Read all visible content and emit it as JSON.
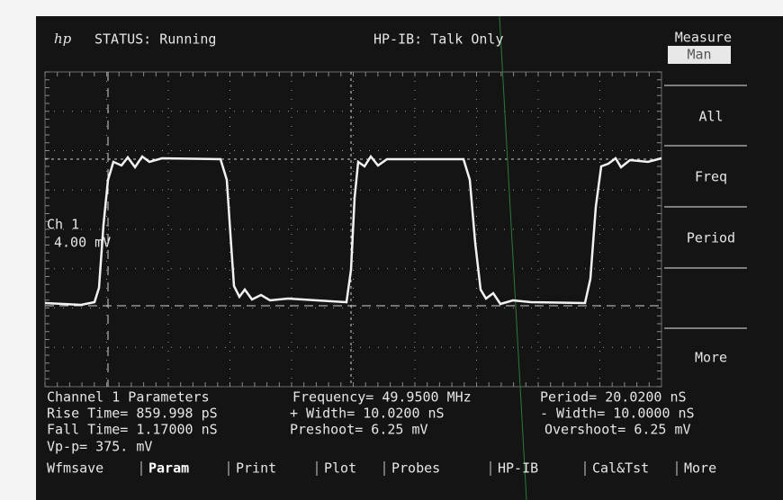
{
  "header": {
    "logo": "hp",
    "status": "STATUS: Running",
    "hpib": "HP-IB: Talk Only"
  },
  "menu": {
    "title": "Measure",
    "mode": "Man",
    "buttons": [
      "All",
      "Freq",
      "Period",
      "More"
    ]
  },
  "channel": {
    "name": "Ch 1",
    "scale": "4.00 mV"
  },
  "parameters": {
    "title": "Channel 1 Parameters",
    "rows": [
      [
        "Frequency= 49.9500 MHz",
        "Period= 20.0200 nS"
      ],
      [
        "Rise Time= 859.998 pS",
        "+ Width= 10.0200 nS",
        "- Width= 10.0000 nS"
      ],
      [
        "Fall Time= 1.17000 nS",
        "Preshoot= 6.25 mV",
        "Overshoot= 6.25 mV"
      ],
      [
        "Vp-p= 375. mV"
      ]
    ]
  },
  "softkeys": [
    "Wfmsave",
    "Param",
    "Print",
    "Plot",
    "Probes",
    "HP-IB",
    "Cal&Tst",
    "More"
  ]
}
